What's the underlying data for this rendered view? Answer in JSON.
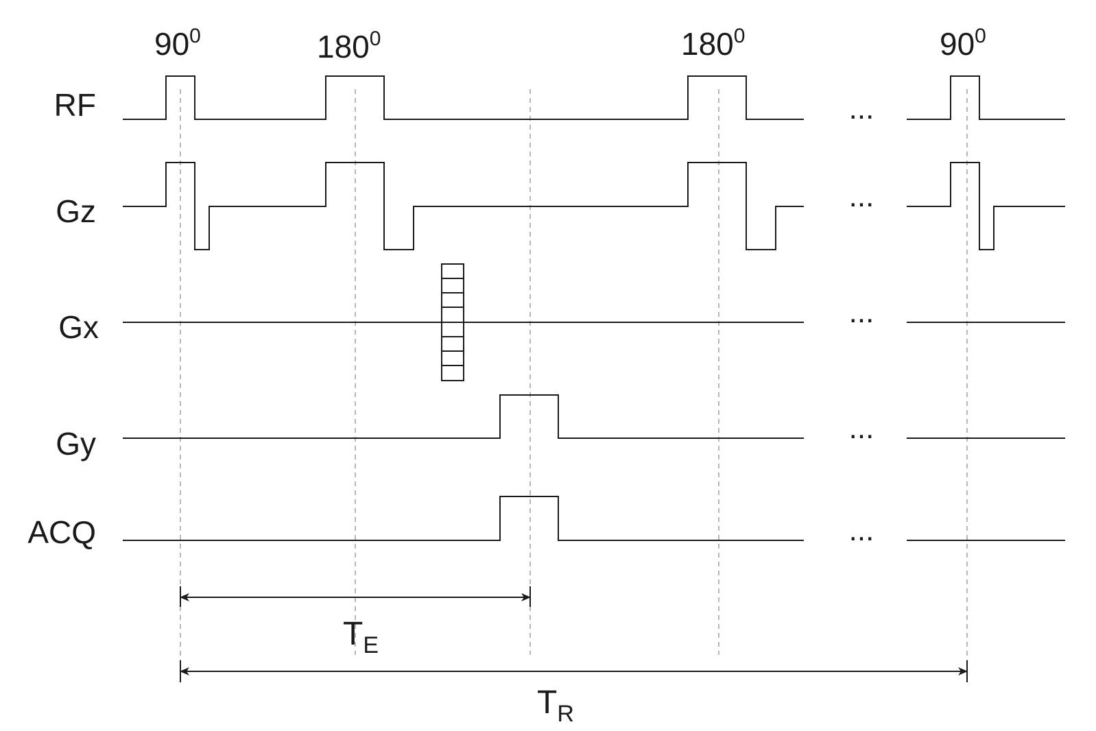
{
  "rows": {
    "rf": "RF",
    "gz": "Gz",
    "gx": "Gx",
    "gy": "Gy",
    "acq": "ACQ"
  },
  "pulses": {
    "p1": {
      "base": "90",
      "sup": "0"
    },
    "p2": {
      "base": "180",
      "sup": "0"
    },
    "p3": {
      "base": "180",
      "sup": "0"
    },
    "p4": {
      "base": "90",
      "sup": "0"
    }
  },
  "ellipsis": "...",
  "intervals": {
    "te": {
      "base": "T",
      "sub": "E"
    },
    "tr": {
      "base": "T",
      "sub": "R"
    }
  }
}
